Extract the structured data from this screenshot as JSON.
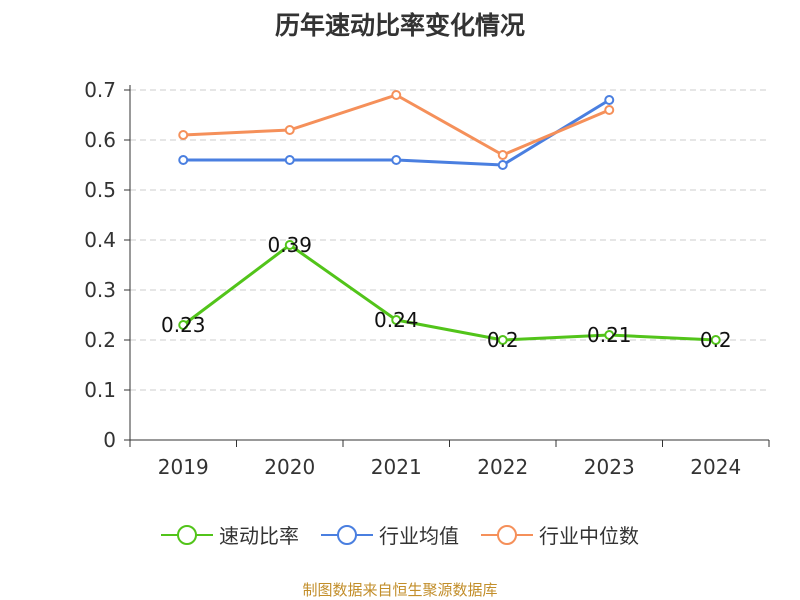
{
  "chart_data": {
    "type": "line",
    "title": "历年速动比率变化情况",
    "categories": [
      "2019",
      "2020",
      "2021",
      "2022",
      "2023",
      "2024"
    ],
    "y_ticks": [
      "0",
      "0.1",
      "0.2",
      "0.3",
      "0.4",
      "0.5",
      "0.6",
      "0.7"
    ],
    "ylim": [
      0,
      0.7
    ],
    "grid": true,
    "legend_position": "bottom",
    "series": [
      {
        "name": "速动比率",
        "color": "#52c41a",
        "values": [
          0.23,
          0.39,
          0.24,
          0.2,
          0.21,
          0.2
        ],
        "labels": [
          "0.23",
          "0.39",
          "0.24",
          "0.2",
          "0.21",
          "0.2"
        ]
      },
      {
        "name": "行业均值",
        "color": "#4a7fe0",
        "values": [
          0.56,
          0.56,
          0.56,
          0.55,
          0.68,
          null
        ]
      },
      {
        "name": "行业中位数",
        "color": "#f5905a",
        "values": [
          0.61,
          0.62,
          0.69,
          0.57,
          0.66,
          null
        ]
      }
    ]
  },
  "source": "制图数据来自恒生聚源数据库"
}
